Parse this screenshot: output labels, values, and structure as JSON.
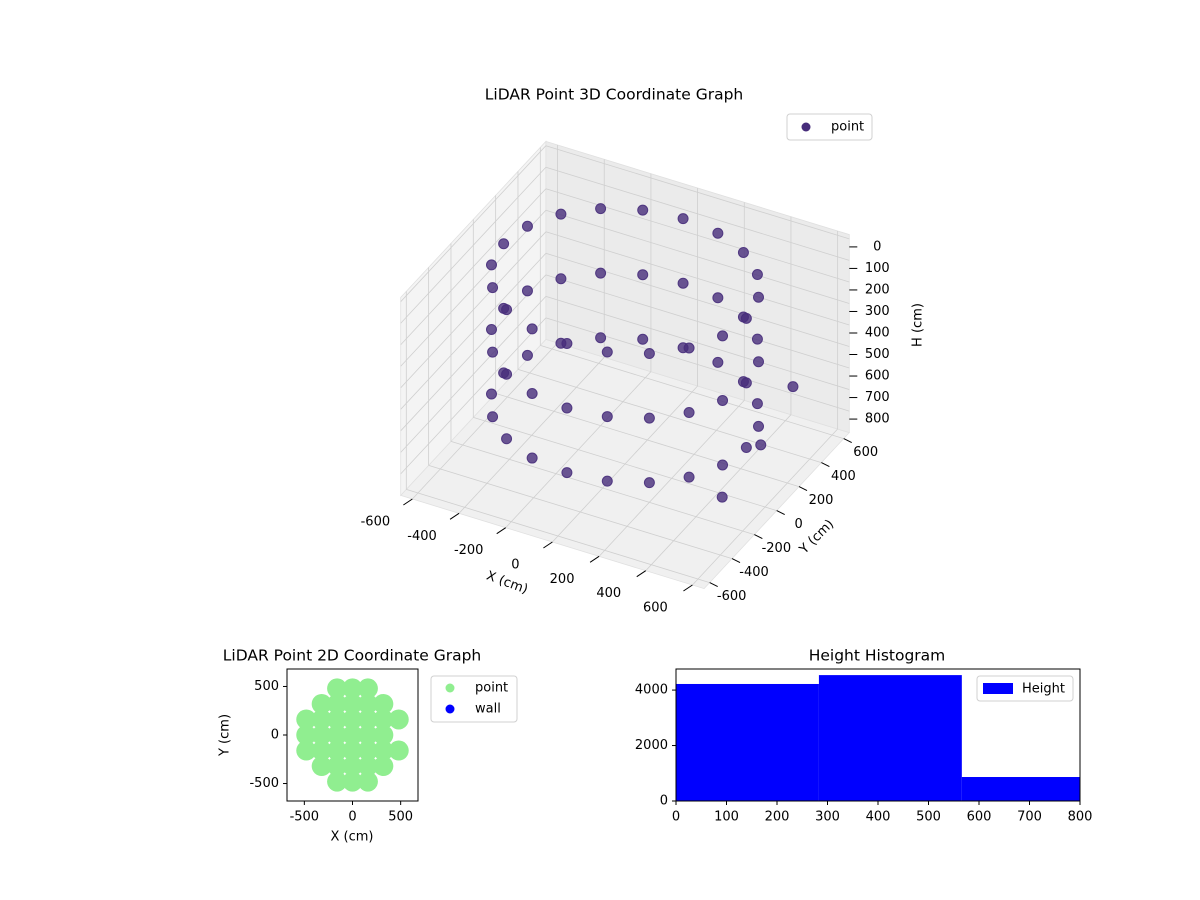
{
  "chart_data": [
    {
      "type": "scatter3d",
      "title": "LiDAR Point 3D Coordinate Graph",
      "xlabel": "X (cm)",
      "ylabel": "Y (cm)",
      "zlabel": "H (cm)",
      "xlim": [
        -650,
        650
      ],
      "ylim": [
        -650,
        650
      ],
      "zlim": [
        900,
        -20
      ],
      "xticks": [
        -600,
        -400,
        -200,
        0,
        200,
        400,
        600
      ],
      "yticks": [
        -600,
        -400,
        -200,
        0,
        200,
        400,
        600
      ],
      "zticks": [
        0,
        100,
        200,
        300,
        400,
        500,
        600,
        700,
        800
      ],
      "grid": true,
      "legend": "upper right",
      "series": [
        {
          "name": "point",
          "color": "#472d7b",
          "x": [
            520,
            495,
            421,
            306,
            161,
            0,
            -161,
            -306,
            -421,
            -495,
            -520,
            -495,
            -421,
            -306,
            -161,
            0,
            161,
            306,
            421,
            495,
            520,
            495,
            421,
            306,
            161,
            0,
            -161,
            -306,
            -421,
            -495,
            -520,
            -495,
            -421,
            -306,
            -161,
            0,
            161,
            306,
            421,
            495,
            520,
            495,
            421,
            306,
            161,
            0,
            -161,
            -306,
            -421,
            -495,
            -520,
            -495,
            -421,
            -306,
            -161,
            0,
            161,
            306,
            421,
            495,
            600,
            560,
            620
          ],
          "y": [
            0,
            161,
            306,
            421,
            495,
            520,
            495,
            421,
            306,
            161,
            0,
            -161,
            -306,
            -421,
            -495,
            -520,
            -495,
            -421,
            -306,
            -161,
            0,
            161,
            306,
            421,
            495,
            520,
            495,
            421,
            306,
            161,
            0,
            -161,
            -306,
            -421,
            -495,
            -520,
            -495,
            -421,
            -306,
            -161,
            0,
            161,
            306,
            421,
            495,
            520,
            495,
            421,
            306,
            161,
            0,
            -161,
            -306,
            -421,
            -495,
            -520,
            -495,
            -421,
            -306,
            -161,
            250,
            -300,
            -80
          ],
          "z": [
            50,
            50,
            50,
            50,
            50,
            50,
            50,
            50,
            50,
            50,
            50,
            50,
            50,
            50,
            50,
            50,
            50,
            50,
            50,
            50,
            350,
            350,
            350,
            350,
            350,
            350,
            350,
            350,
            350,
            350,
            350,
            350,
            350,
            350,
            350,
            350,
            350,
            350,
            350,
            350,
            650,
            650,
            650,
            650,
            650,
            650,
            650,
            650,
            650,
            650,
            650,
            650,
            650,
            650,
            650,
            650,
            650,
            650,
            650,
            650,
            480,
            700,
            560
          ]
        }
      ]
    },
    {
      "type": "scatter",
      "title": "LiDAR Point 2D Coordinate Graph",
      "xlabel": "X (cm)",
      "ylabel": "Y (cm)",
      "xlim": [
        -680,
        680
      ],
      "ylim": [
        -680,
        680
      ],
      "xticks": [
        -500,
        0,
        500
      ],
      "yticks": [
        -500,
        0,
        500
      ],
      "legend": "outside right",
      "series": [
        {
          "name": "point",
          "color": "#90ee90",
          "x": [
            -480,
            -480,
            -480,
            -320,
            -320,
            -320,
            -320,
            -320,
            -160,
            -160,
            -160,
            -160,
            -160,
            -160,
            -160,
            0,
            0,
            0,
            0,
            0,
            0,
            0,
            160,
            160,
            160,
            160,
            160,
            160,
            160,
            320,
            320,
            320,
            320,
            320,
            480,
            480
          ],
          "y": [
            -160,
            0,
            160,
            -320,
            -160,
            0,
            160,
            320,
            -480,
            -320,
            -160,
            0,
            160,
            320,
            480,
            -480,
            -320,
            -160,
            0,
            160,
            320,
            480,
            -480,
            -320,
            -160,
            0,
            160,
            320,
            480,
            -320,
            -160,
            0,
            160,
            320,
            -160,
            160
          ]
        },
        {
          "name": "wall",
          "color": "#0000ff",
          "x": [],
          "y": []
        }
      ]
    },
    {
      "type": "histogram",
      "title": "Height Histogram",
      "bins": [
        0,
        283,
        566,
        849
      ],
      "xlim": [
        0,
        800
      ],
      "ylim": [
        0,
        4760
      ],
      "xticks": [
        0,
        100,
        200,
        300,
        400,
        500,
        600,
        700,
        800
      ],
      "yticks": [
        0,
        2000,
        4000
      ],
      "legend": "upper right",
      "series": [
        {
          "name": "Height",
          "color": "#0000ff",
          "values": [
            4220,
            4540,
            865
          ]
        }
      ]
    }
  ]
}
